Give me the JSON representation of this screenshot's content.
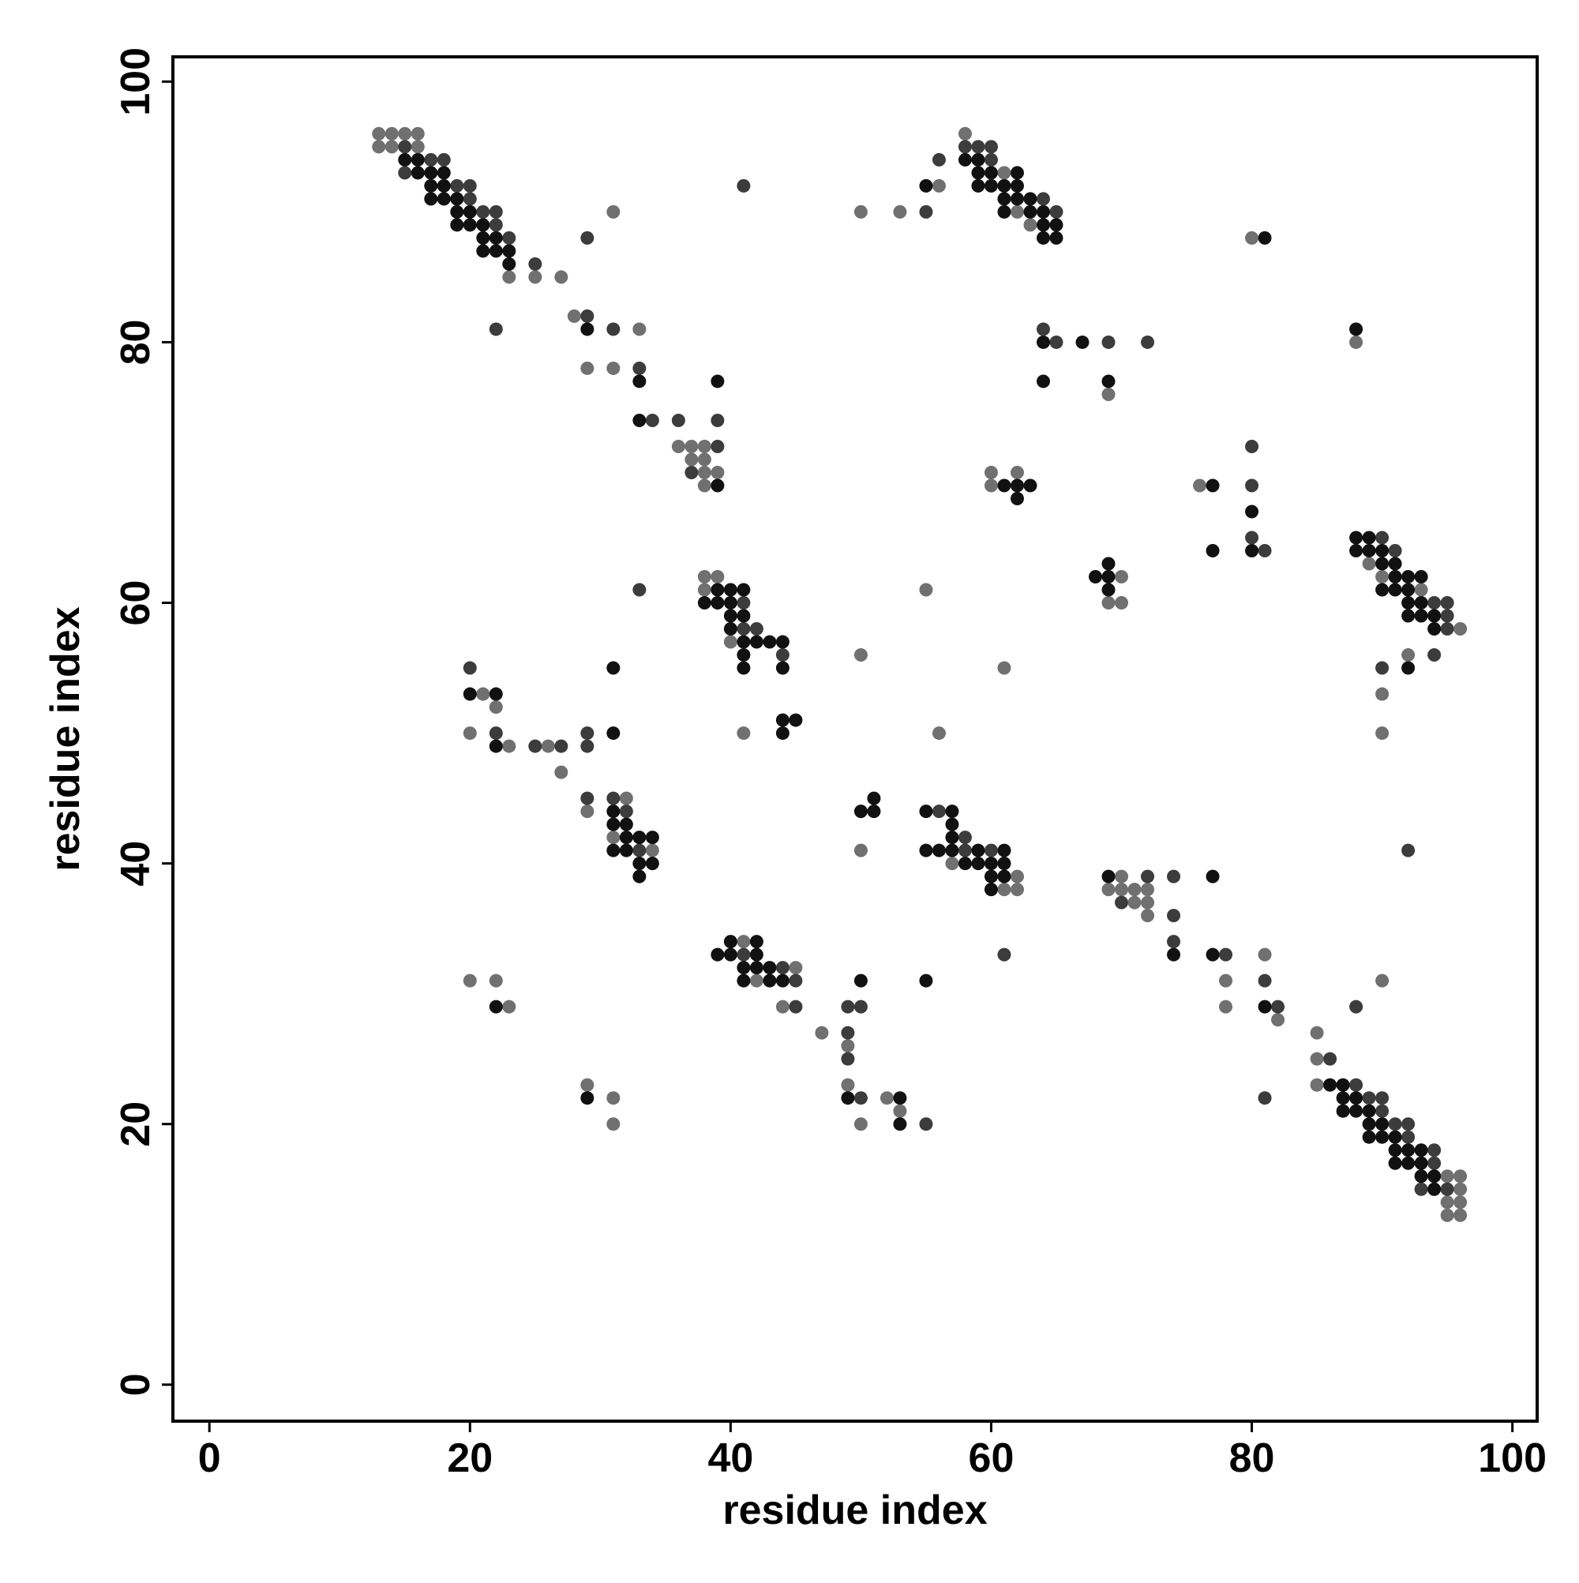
{
  "chart_data": {
    "type": "scatter",
    "xlabel": "residue index",
    "ylabel": "residue index",
    "xlim": [
      -2.8,
      101.9
    ],
    "ylim": [
      -2.8,
      101.9
    ],
    "xticks": [
      0,
      20,
      40,
      60,
      80,
      100
    ],
    "yticks": [
      0,
      20,
      40,
      60,
      80,
      100
    ],
    "series": [
      {
        "color": "#707070",
        "x": [
          13,
          14,
          15,
          16,
          13,
          14,
          16,
          23,
          25,
          27,
          31,
          28,
          33,
          29,
          31,
          36,
          37,
          38,
          37,
          38,
          38,
          39,
          38,
          38,
          39,
          38,
          40,
          41,
          21,
          22,
          20,
          23,
          26,
          27,
          32,
          29,
          31,
          34,
          20,
          22,
          23,
          58,
          61,
          56,
          50,
          53,
          62,
          63,
          80,
          69,
          60,
          62,
          60,
          50,
          55,
          96,
          96,
          96,
          96,
          95,
          95,
          95,
          85,
          85,
          85,
          90,
          82,
          81,
          78,
          78,
          72,
          72,
          72,
          71,
          71,
          70,
          70,
          69,
          62,
          62,
          61,
          57,
          50,
          53,
          52,
          50,
          49,
          49,
          47,
          45,
          44,
          42,
          41,
          31,
          31,
          29,
          96,
          93,
          92,
          90,
          90,
          90,
          89,
          88,
          76,
          70,
          70,
          69,
          56,
          61
        ],
        "values": [
          96,
          96,
          96,
          96,
          95,
          95,
          95,
          85,
          85,
          85,
          90,
          82,
          81,
          78,
          78,
          72,
          72,
          72,
          71,
          71,
          70,
          70,
          69,
          62,
          62,
          61,
          57,
          50,
          53,
          52,
          50,
          49,
          49,
          47,
          45,
          44,
          42,
          41,
          31,
          31,
          29,
          96,
          93,
          92,
          90,
          90,
          90,
          89,
          88,
          76,
          70,
          70,
          69,
          56,
          61,
          13,
          14,
          15,
          16,
          13,
          14,
          16,
          23,
          25,
          27,
          31,
          28,
          33,
          29,
          31,
          36,
          37,
          38,
          37,
          38,
          38,
          39,
          38,
          38,
          39,
          38,
          40,
          41,
          21,
          22,
          20,
          23,
          26,
          27,
          32,
          29,
          31,
          34,
          20,
          22,
          23,
          58,
          61,
          56,
          50,
          53,
          62,
          63,
          80,
          69,
          60,
          62,
          60,
          50,
          55
        ]
      },
      {
        "color": "#3c3c3c",
        "x": [
          15,
          17,
          18,
          15,
          19,
          20,
          20,
          21,
          22,
          22,
          23,
          25,
          41,
          29,
          22,
          29,
          31,
          33,
          34,
          36,
          39,
          39,
          37,
          33,
          41,
          41,
          42,
          44,
          20,
          22,
          29,
          25,
          27,
          29,
          29,
          31,
          32,
          33,
          58,
          59,
          60,
          56,
          60,
          64,
          55,
          65,
          64,
          65,
          69,
          72,
          95,
          94,
          94,
          93,
          92,
          92,
          91,
          90,
          90,
          89,
          88,
          86,
          92,
          88,
          81,
          82,
          81,
          78,
          74,
          74,
          74,
          72,
          70,
          61,
          60,
          58,
          58,
          56,
          55,
          50,
          50,
          49,
          49,
          49,
          45,
          45,
          44,
          41,
          95,
          95,
          95,
          94,
          94,
          91,
          90,
          90,
          81,
          80,
          80,
          80
        ],
        "values": [
          95,
          94,
          94,
          93,
          92,
          92,
          91,
          90,
          90,
          89,
          88,
          86,
          92,
          88,
          81,
          82,
          81,
          78,
          74,
          74,
          74,
          72,
          70,
          61,
          60,
          58,
          58,
          56,
          55,
          50,
          50,
          49,
          49,
          49,
          45,
          45,
          44,
          41,
          95,
          95,
          95,
          94,
          94,
          91,
          90,
          90,
          81,
          80,
          80,
          80,
          15,
          17,
          18,
          15,
          19,
          20,
          20,
          21,
          22,
          22,
          23,
          25,
          41,
          29,
          22,
          29,
          31,
          33,
          34,
          36,
          39,
          39,
          37,
          33,
          41,
          41,
          42,
          44,
          20,
          22,
          29,
          25,
          27,
          29,
          29,
          31,
          32,
          33,
          58,
          59,
          60,
          56,
          60,
          64,
          55,
          65,
          64,
          65,
          69,
          72
        ]
      },
      {
        "color": "#111111",
        "x": [
          15,
          16,
          16,
          17,
          18,
          17,
          18,
          17,
          18,
          19,
          19,
          20,
          19,
          20,
          21,
          21,
          22,
          21,
          22,
          23,
          23,
          29,
          33,
          39,
          33,
          39,
          39,
          40,
          41,
          38,
          39,
          40,
          40,
          41,
          40,
          41,
          42,
          43,
          44,
          41,
          41,
          44,
          31,
          44,
          45,
          44,
          20,
          22,
          31,
          22,
          31,
          31,
          32,
          32,
          33,
          34,
          31,
          32,
          33,
          34,
          33,
          22,
          58,
          59,
          59,
          60,
          62,
          55,
          59,
          60,
          61,
          62,
          61,
          62,
          63,
          61,
          63,
          64,
          64,
          65,
          64,
          65,
          81,
          64,
          67,
          64,
          69,
          61,
          62,
          63,
          62,
          94,
          94,
          93,
          93,
          93,
          92,
          92,
          91,
          91,
          91,
          90,
          90,
          89,
          89,
          89,
          88,
          88,
          87,
          87,
          87,
          86,
          81,
          77,
          77,
          74,
          69,
          61,
          61,
          61,
          60,
          60,
          60,
          59,
          59,
          58,
          57,
          57,
          57,
          57,
          56,
          55,
          55,
          55,
          51,
          51,
          50,
          53,
          53,
          50,
          49,
          44,
          43,
          43,
          42,
          42,
          42,
          41,
          41,
          40,
          40,
          39,
          29,
          94,
          94,
          93,
          93,
          93,
          92,
          92,
          92,
          92,
          92,
          91,
          91,
          91,
          90,
          90,
          90,
          89,
          89,
          88,
          88,
          88,
          80,
          80,
          77,
          77,
          69,
          69,
          69,
          68
        ],
        "values": [
          94,
          94,
          93,
          93,
          93,
          92,
          92,
          91,
          91,
          91,
          90,
          90,
          89,
          89,
          89,
          88,
          88,
          87,
          87,
          87,
          86,
          81,
          77,
          77,
          74,
          69,
          61,
          61,
          61,
          60,
          60,
          60,
          59,
          59,
          58,
          57,
          57,
          57,
          57,
          56,
          55,
          55,
          55,
          51,
          51,
          50,
          53,
          53,
          50,
          49,
          44,
          43,
          43,
          42,
          42,
          42,
          41,
          41,
          40,
          40,
          39,
          29,
          94,
          94,
          93,
          93,
          93,
          92,
          92,
          92,
          92,
          92,
          91,
          91,
          91,
          90,
          90,
          90,
          89,
          89,
          88,
          88,
          88,
          80,
          80,
          77,
          77,
          69,
          69,
          69,
          68,
          15,
          16,
          16,
          17,
          18,
          17,
          18,
          17,
          18,
          19,
          19,
          20,
          19,
          20,
          21,
          21,
          22,
          21,
          22,
          23,
          23,
          29,
          33,
          39,
          33,
          39,
          39,
          40,
          41,
          38,
          39,
          40,
          40,
          41,
          40,
          41,
          42,
          43,
          44,
          41,
          41,
          44,
          31,
          44,
          45,
          44,
          20,
          22,
          31,
          22,
          31,
          31,
          32,
          32,
          33,
          34,
          31,
          32,
          33,
          34,
          33,
          22,
          58,
          59,
          59,
          60,
          62,
          55,
          59,
          60,
          61,
          62,
          61,
          62,
          63,
          61,
          63,
          64,
          64,
          65,
          64,
          65,
          81,
          64,
          67,
          64,
          69,
          61,
          62,
          63,
          62
        ]
      }
    ]
  }
}
